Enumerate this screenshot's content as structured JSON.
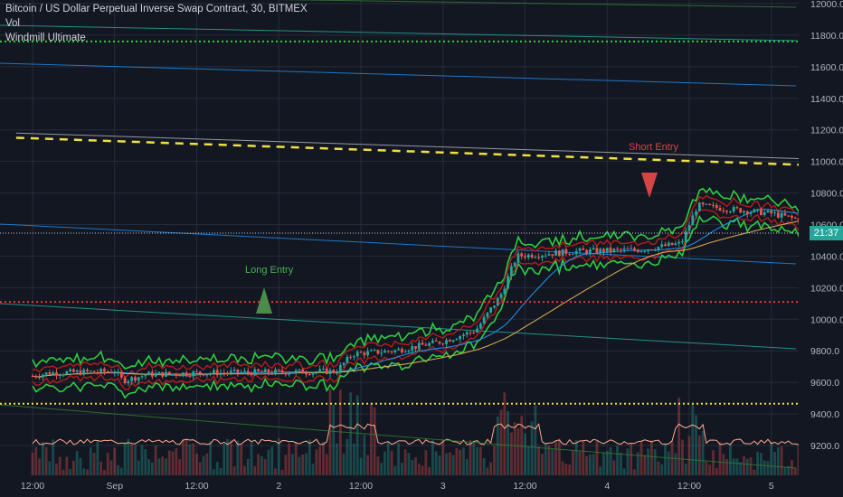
{
  "legend": {
    "title": "Bitcoin / US Dollar Perpetual Inverse Swap Contract, 30, BITMEX",
    "indicator1": "Vol",
    "indicator2": "Windmill Ultimate"
  },
  "annotations": {
    "long_entry": "Long Entry",
    "short_entry": "Short Entry"
  },
  "current_price_badge": "21:37",
  "colors": {
    "background": "#131722",
    "grid": "#262b3a",
    "up_candle": "#26a69a",
    "down_candle": "#ef5350",
    "band_green": "#2ecc40",
    "band_red": "#b71c1c",
    "dashed_yellow": "#f0e040",
    "dashed_red": "#e53935",
    "long_marker": "#4c8c4a",
    "short_marker": "#d64545"
  },
  "chart_data": {
    "type": "candlestick",
    "symbol": "Bitcoin / US Dollar Perpetual Inverse Swap Contract",
    "interval": "30",
    "exchange": "BITMEX",
    "y_ticks": [
      "12000.0",
      "11800.0",
      "11600.0",
      "11400.0",
      "11200.0",
      "11000.0",
      "10800.0",
      "10600.0",
      "10400.0",
      "10200.0",
      "10000.0",
      "9800.0",
      "9600.0",
      "9400.0",
      "9200.0"
    ],
    "x_ticks": [
      "12:00",
      "Sep",
      "12:00",
      "2",
      "12:00",
      "3",
      "12:00",
      "4",
      "12:00",
      "5"
    ],
    "ylim": [
      9050,
      12030
    ],
    "price_path": [
      [
        0,
        9640
      ],
      [
        0.1,
        9660
      ],
      [
        0.5,
        9670
      ],
      [
        0.55,
        9610
      ],
      [
        0.7,
        9650
      ],
      [
        1,
        9660
      ],
      [
        1.5,
        9665
      ],
      [
        1.85,
        9670
      ],
      [
        1.95,
        9780
      ],
      [
        2.2,
        9800
      ],
      [
        2.5,
        9860
      ],
      [
        2.7,
        9930
      ],
      [
        2.85,
        10150
      ],
      [
        2.95,
        10400
      ],
      [
        3.3,
        10430
      ],
      [
        3.7,
        10440
      ],
      [
        3.95,
        10480
      ],
      [
        4.05,
        10720
      ],
      [
        4.5,
        10670
      ],
      [
        4.8,
        10600
      ],
      [
        5.0,
        10550
      ],
      [
        5.2,
        10570
      ]
    ],
    "horizontal_levels": [
      {
        "price": 11760,
        "style": "dotted",
        "color": "green"
      },
      {
        "price": 10110,
        "style": "dotted",
        "color": "red"
      },
      {
        "price": 9465,
        "style": "dotted",
        "color": "yellow"
      }
    ],
    "trendlines": [
      {
        "style": "dashed",
        "color": "yellow",
        "from": [
          -0.1,
          11150
        ],
        "to": [
          5.2,
          10960
        ]
      },
      {
        "style": "solid",
        "color": "gray",
        "from": [
          -0.1,
          11180
        ],
        "to": [
          5.2,
          11000
        ]
      }
    ],
    "markers": [
      {
        "label": "Long Entry",
        "type": "up",
        "x": 2.0,
        "price": 10100
      },
      {
        "label": "Short Entry",
        "type": "down",
        "x": 4.3,
        "price": 10750
      }
    ]
  }
}
